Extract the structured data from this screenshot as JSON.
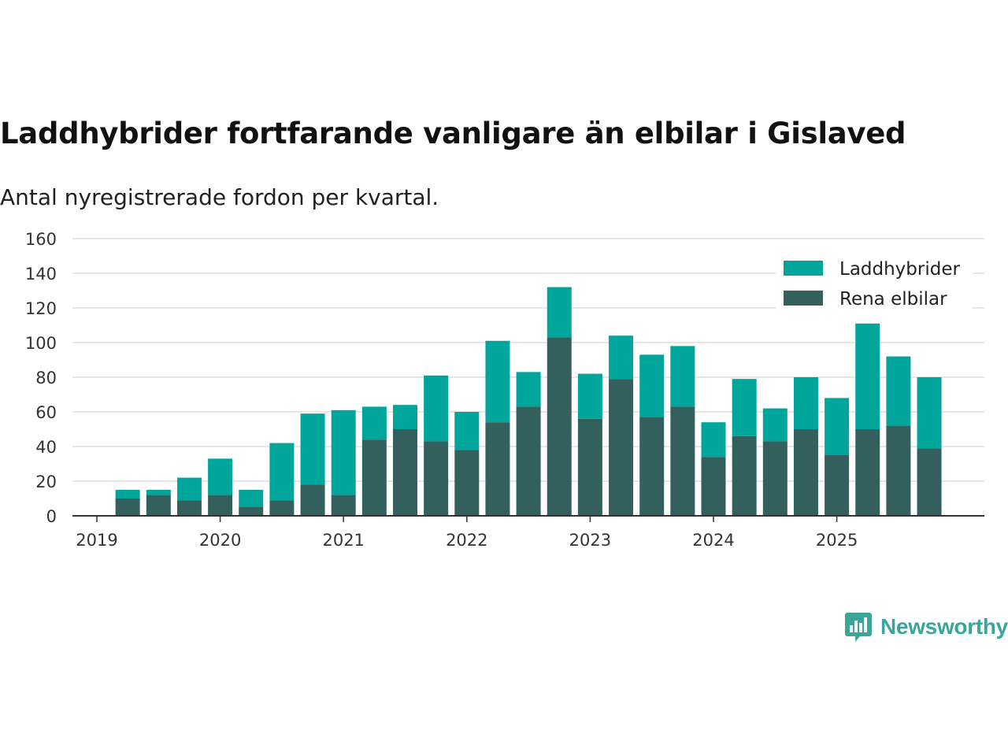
{
  "title": "Laddhybrider fortfarande vanligare än elbilar i Gislaved",
  "subtitle": "Antal nyregistrerade fordon per kvartal.",
  "brand": "Newsworthy",
  "colors": {
    "laddhybrider": "#00a59b",
    "elbilar": "#335f5c",
    "grid": "#dddddd",
    "axis": "#333333",
    "brand": "#3aa69a"
  },
  "chart_data": {
    "type": "bar",
    "stacked": true,
    "categories": [
      "2019 Q2",
      "2019 Q3",
      "2019 Q4",
      "2020 Q1",
      "2020 Q2",
      "2020 Q3",
      "2020 Q4",
      "2021 Q1",
      "2021 Q2",
      "2021 Q3",
      "2021 Q4",
      "2022 Q1",
      "2022 Q2",
      "2022 Q3",
      "2022 Q4",
      "2023 Q1",
      "2023 Q2",
      "2023 Q3",
      "2023 Q4",
      "2024 Q1",
      "2024 Q2",
      "2024 Q3",
      "2024 Q4",
      "2025 Q1",
      "2025 Q2",
      "2025 Q3",
      "2025 Q4"
    ],
    "series": [
      {
        "name": "Rena elbilar",
        "values": [
          10,
          12,
          9,
          12,
          5,
          9,
          18,
          12,
          44,
          50,
          43,
          38,
          54,
          63,
          103,
          56,
          79,
          57,
          63,
          34,
          46,
          43,
          50,
          35,
          50,
          52,
          39
        ]
      },
      {
        "name": "Laddhybrider",
        "values": [
          5,
          3,
          13,
          21,
          10,
          33,
          41,
          49,
          19,
          14,
          38,
          22,
          47,
          20,
          29,
          26,
          25,
          36,
          35,
          20,
          33,
          19,
          30,
          33,
          61,
          40,
          41
        ]
      }
    ],
    "x_ticks": [
      "2019",
      "2020",
      "2021",
      "2022",
      "2023",
      "2024",
      "2025"
    ],
    "y_ticks": [
      0,
      20,
      40,
      60,
      80,
      100,
      120,
      140,
      160
    ],
    "ylim": [
      0,
      160
    ],
    "legend": [
      "Laddhybrider",
      "Rena elbilar"
    ],
    "legend_position": "top-right",
    "grid": true
  }
}
